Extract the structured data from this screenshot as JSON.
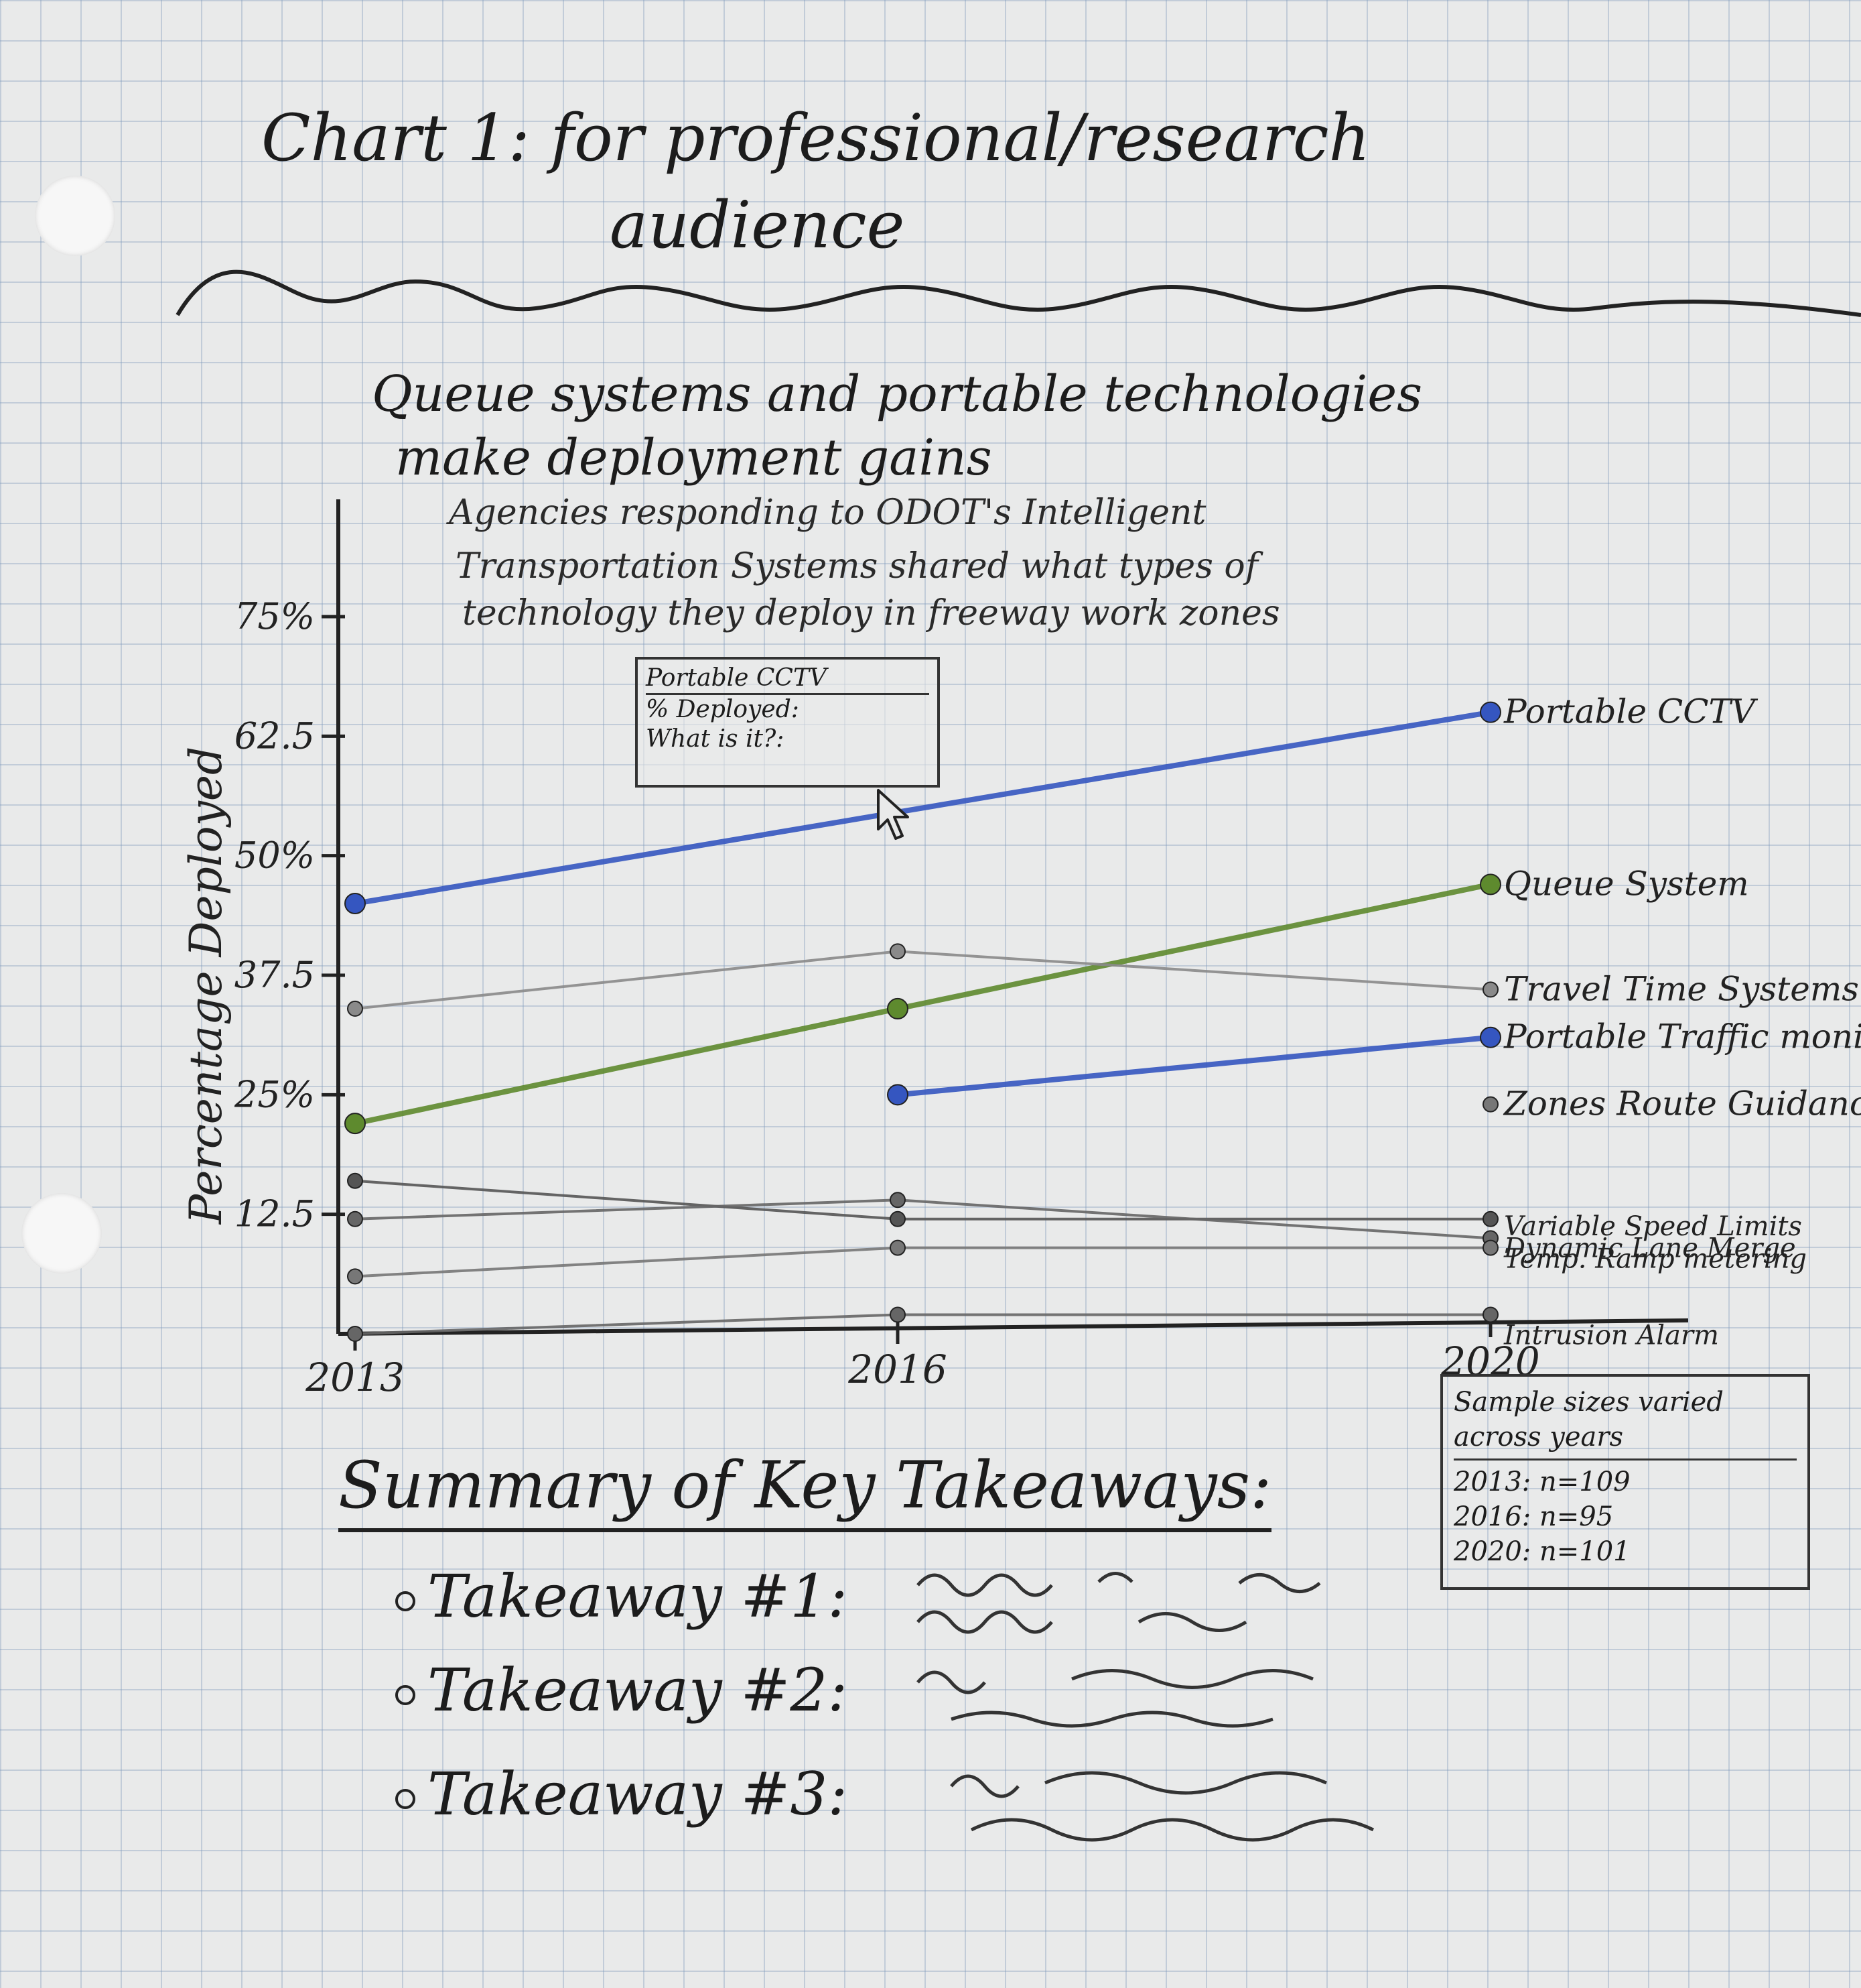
{
  "page": {
    "title": "Chart 1: for professional/research",
    "title_line2": "audience"
  },
  "chart_data": {
    "type": "line",
    "title": "Queue systems and portable technologies",
    "title_line2": "make deployment gains",
    "subtitle": [
      "Agencies responding to ODOT's Intelligent",
      "Transportation Systems shared what types of",
      "technology they deploy in freeway work zones"
    ],
    "ylabel": "Percentage Deployed",
    "ylim": [
      0,
      75
    ],
    "y_ticks": [
      {
        "value": 75,
        "label": "75%"
      },
      {
        "value": 62.5,
        "label": "62.5"
      },
      {
        "value": 50,
        "label": "50%"
      },
      {
        "value": 37.5,
        "label": "37.5"
      },
      {
        "value": 25,
        "label": "25%"
      },
      {
        "value": 12.5,
        "label": "12.5"
      }
    ],
    "x": [
      "2013",
      "2016",
      "2020"
    ],
    "series": [
      {
        "name": "Portable CCTV",
        "color": "#3556c0",
        "values": [
          45,
          null,
          65
        ]
      },
      {
        "name": "Queue System",
        "color": "#5e8a2e",
        "values": [
          22,
          34,
          47
        ]
      },
      {
        "name": "Travel Time Systems",
        "color": "#8a8a8a",
        "values": [
          34,
          40,
          36
        ]
      },
      {
        "name": "Portable Traffic monitoring systems",
        "color": "#3556c0",
        "values": [
          null,
          25,
          31
        ]
      },
      {
        "name": "Zones Route Guidance",
        "color": "#777777",
        "values": [
          null,
          null,
          24
        ]
      },
      {
        "name": "Variable Speed Limits",
        "color": "#555555",
        "values": [
          16,
          12,
          12
        ]
      },
      {
        "name": "Dynamic Lane Merge",
        "color": "#666666",
        "values": [
          12,
          14,
          10
        ]
      },
      {
        "name": "Temp. Ramp metering",
        "color": "#777777",
        "values": [
          6,
          9,
          9
        ]
      },
      {
        "name": "Intrusion Alarm",
        "color": "#666666",
        "values": [
          0,
          2,
          2
        ]
      }
    ],
    "tooltip": {
      "title": "Portable CCTV",
      "row1": "% Deployed:",
      "row2": "What is it?:"
    },
    "note": {
      "title": "Sample sizes varied across years",
      "rows": [
        "2013: n=109",
        "2016: n=95",
        "2020: n=101"
      ]
    }
  },
  "summary": {
    "heading": "Summary of Key Takeaways:",
    "items": [
      "Takeaway #1:",
      "Takeaway #2:",
      "Takeaway #3:"
    ]
  }
}
